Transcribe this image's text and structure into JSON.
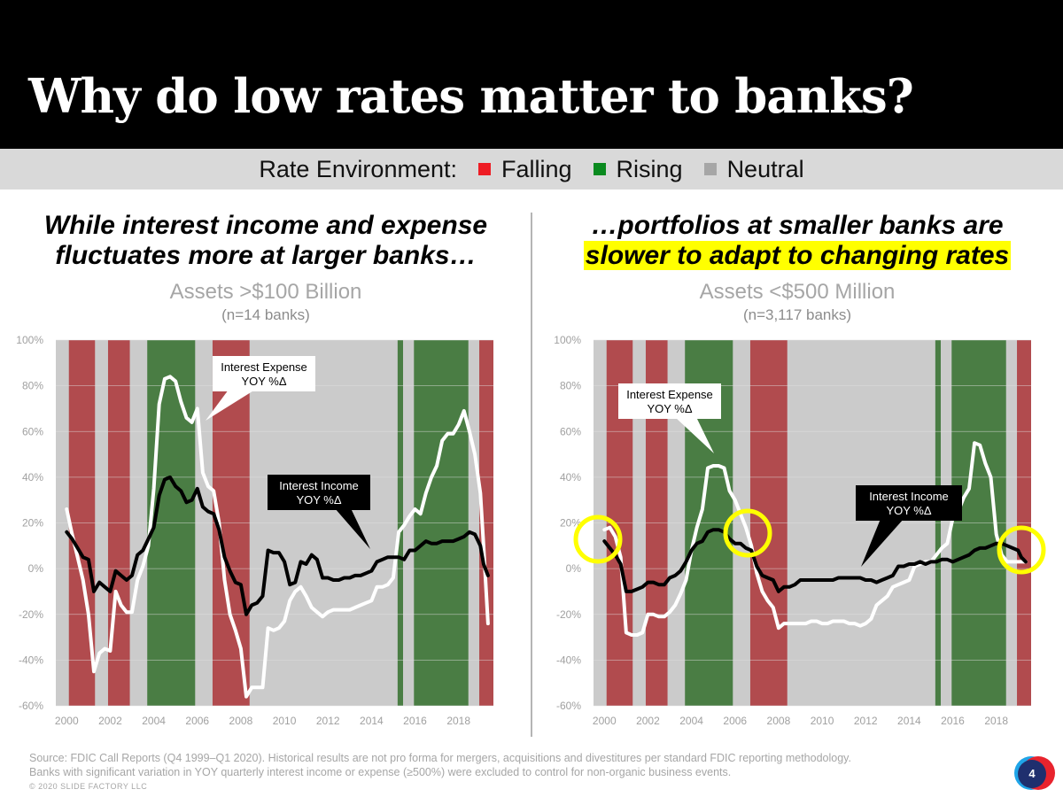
{
  "title": "Why do low rates matter to banks?",
  "legend": {
    "label": "Rate Environment:",
    "items": [
      {
        "label": "Falling",
        "color": "#ee1c24"
      },
      {
        "label": "Rising",
        "color": "#0a8a1f"
      },
      {
        "label": "Neutral",
        "color": "#a6a6a6"
      }
    ]
  },
  "left": {
    "headline_line1": "While interest income and expense",
    "headline_line2": "fluctuates more at larger banks…",
    "subtitle": "Assets >$100 Billion",
    "note": "(n=14 banks)"
  },
  "right": {
    "headline_line1": "…portfolios at smaller banks are",
    "headline_highlight": "slower to adapt to changing rates",
    "subtitle": "Assets <$500 Million",
    "note": "(n=3,117 banks)"
  },
  "chart_data": [
    {
      "type": "line",
      "title": "Assets >$100 Billion",
      "ylim": [
        -60,
        100
      ],
      "xlim": [
        1999.5,
        2019.6
      ],
      "y_ticks": [
        "100%",
        "80%",
        "60%",
        "40%",
        "20%",
        "0%",
        "-20%",
        "-40%",
        "-60%"
      ],
      "x_ticks": [
        "2000",
        "2002",
        "2004",
        "2006",
        "2008",
        "2010",
        "2012",
        "2014",
        "2016",
        "2018"
      ],
      "regimes": [
        {
          "type": "falling",
          "start": 2000.1,
          "end": 2001.3
        },
        {
          "type": "falling",
          "start": 2001.9,
          "end": 2002.9
        },
        {
          "type": "rising",
          "start": 2003.7,
          "end": 2005.9
        },
        {
          "type": "falling",
          "start": 2006.7,
          "end": 2008.4
        },
        {
          "type": "rising",
          "start": 2015.2,
          "end": 2015.45
        },
        {
          "type": "rising",
          "start": 2015.95,
          "end": 2018.45
        },
        {
          "type": "falling",
          "start": 2018.95,
          "end": 2019.6
        }
      ],
      "series": [
        {
          "name": "Interest Expense YOY %Δ",
          "color": "#ffffff",
          "x": [
            2000.0,
            2000.25,
            2000.5,
            2000.75,
            2001.0,
            2001.25,
            2001.5,
            2001.75,
            2002.0,
            2002.25,
            2002.5,
            2002.75,
            2003.0,
            2003.25,
            2003.5,
            2003.75,
            2004.0,
            2004.25,
            2004.5,
            2004.75,
            2005.0,
            2005.25,
            2005.5,
            2005.75,
            2006.0,
            2006.25,
            2006.5,
            2006.75,
            2007.0,
            2007.25,
            2007.5,
            2007.75,
            2008.0,
            2008.25,
            2008.5,
            2008.75,
            2009.0,
            2009.25,
            2009.5,
            2009.75,
            2010.0,
            2010.25,
            2010.5,
            2010.75,
            2011.0,
            2011.25,
            2011.5,
            2011.75,
            2012.0,
            2012.25,
            2012.5,
            2012.75,
            2013.0,
            2013.25,
            2013.5,
            2013.75,
            2014.0,
            2014.25,
            2014.5,
            2014.75,
            2015.0,
            2015.25,
            2015.5,
            2015.75,
            2016.0,
            2016.25,
            2016.5,
            2016.75,
            2017.0,
            2017.25,
            2017.5,
            2017.75,
            2018.0,
            2018.25,
            2018.5,
            2018.75,
            2019.0,
            2019.15,
            2019.35
          ],
          "values": [
            26,
            15,
            5,
            -5,
            -20,
            -45,
            -37,
            -35,
            -36,
            -10,
            -16,
            -19,
            -19,
            -5,
            1,
            10,
            35,
            72,
            83,
            84,
            82,
            73,
            66,
            64,
            70,
            42,
            36,
            34,
            20,
            -5,
            -20,
            -27,
            -35,
            -56,
            -52,
            -52,
            -52,
            -26,
            -27,
            -26,
            -23,
            -14,
            -10,
            -8,
            -12,
            -17,
            -19,
            -21,
            -19,
            -18,
            -18,
            -18,
            -18,
            -17,
            -16,
            -15,
            -14,
            -8,
            -8,
            -7,
            -4,
            16,
            19,
            23,
            26,
            24,
            33,
            40,
            45,
            56,
            59,
            59,
            63,
            69,
            60,
            50,
            33,
            10,
            -24
          ]
        },
        {
          "name": "Interest Income YOY %Δ",
          "color": "#000000",
          "x": [
            2000.0,
            2000.25,
            2000.5,
            2000.75,
            2001.0,
            2001.25,
            2001.5,
            2001.75,
            2002.0,
            2002.25,
            2002.5,
            2002.75,
            2003.0,
            2003.25,
            2003.5,
            2003.75,
            2004.0,
            2004.25,
            2004.5,
            2004.75,
            2005.0,
            2005.25,
            2005.5,
            2005.75,
            2006.0,
            2006.25,
            2006.5,
            2006.75,
            2007.0,
            2007.25,
            2007.5,
            2007.75,
            2008.0,
            2008.25,
            2008.5,
            2008.75,
            2009.0,
            2009.25,
            2009.5,
            2009.75,
            2010.0,
            2010.25,
            2010.5,
            2010.75,
            2011.0,
            2011.25,
            2011.5,
            2011.75,
            2012.0,
            2012.25,
            2012.5,
            2012.75,
            2013.0,
            2013.25,
            2013.5,
            2013.75,
            2014.0,
            2014.25,
            2014.5,
            2014.75,
            2015.0,
            2015.25,
            2015.5,
            2015.75,
            2016.0,
            2016.25,
            2016.5,
            2016.75,
            2017.0,
            2017.25,
            2017.5,
            2017.75,
            2018.0,
            2018.25,
            2018.5,
            2018.75,
            2019.0,
            2019.15,
            2019.35
          ],
          "values": [
            16,
            13,
            9,
            5,
            4,
            -10,
            -6,
            -8,
            -10,
            -1,
            -3,
            -5,
            -3,
            6,
            8,
            13,
            18,
            32,
            39,
            40,
            36,
            34,
            29,
            30,
            35,
            27,
            25,
            24,
            17,
            5,
            -1,
            -6,
            -7,
            -20,
            -16,
            -15,
            -12,
            8,
            7,
            7,
            3,
            -7,
            -6,
            3,
            2,
            6,
            4,
            -4,
            -4,
            -5,
            -5,
            -4,
            -4,
            -3,
            -3,
            -2,
            -1,
            3,
            4,
            5,
            5,
            5,
            4,
            8,
            8,
            10,
            12,
            11,
            11,
            12,
            12,
            12,
            13,
            14,
            16,
            15,
            10,
            2,
            -3
          ]
        }
      ],
      "annotations": [
        {
          "line1": "Interest Expense",
          "line2": "YOY %Δ"
        },
        {
          "line1": "Interest Income",
          "line2": "YOY %Δ"
        }
      ]
    },
    {
      "type": "line",
      "title": "Assets <$500 Million",
      "ylim": [
        -60,
        100
      ],
      "xlim": [
        1999.5,
        2019.6
      ],
      "y_ticks": [
        "100%",
        "80%",
        "60%",
        "40%",
        "20%",
        "0%",
        "-20%",
        "-40%",
        "-60%"
      ],
      "x_ticks": [
        "2000",
        "2002",
        "2004",
        "2006",
        "2008",
        "2010",
        "2012",
        "2014",
        "2016",
        "2018"
      ],
      "regimes": [
        {
          "type": "falling",
          "start": 2000.1,
          "end": 2001.3
        },
        {
          "type": "falling",
          "start": 2001.9,
          "end": 2002.9
        },
        {
          "type": "rising",
          "start": 2003.7,
          "end": 2005.9
        },
        {
          "type": "falling",
          "start": 2006.7,
          "end": 2008.4
        },
        {
          "type": "rising",
          "start": 2015.2,
          "end": 2015.45
        },
        {
          "type": "rising",
          "start": 2015.95,
          "end": 2018.45
        },
        {
          "type": "falling",
          "start": 2018.95,
          "end": 2019.6
        }
      ],
      "series": [
        {
          "name": "Interest Expense YOY %Δ",
          "color": "#ffffff",
          "x": [
            2000.0,
            2000.25,
            2000.5,
            2000.75,
            2001.0,
            2001.25,
            2001.5,
            2001.75,
            2002.0,
            2002.25,
            2002.5,
            2002.75,
            2003.0,
            2003.25,
            2003.5,
            2003.75,
            2004.0,
            2004.25,
            2004.5,
            2004.75,
            2005.0,
            2005.25,
            2005.5,
            2005.75,
            2006.0,
            2006.25,
            2006.5,
            2006.75,
            2007.0,
            2007.25,
            2007.5,
            2007.75,
            2008.0,
            2008.25,
            2008.5,
            2008.75,
            2009.0,
            2009.25,
            2009.5,
            2009.75,
            2010.0,
            2010.25,
            2010.5,
            2010.75,
            2011.0,
            2011.25,
            2011.5,
            2011.75,
            2012.0,
            2012.25,
            2012.5,
            2012.75,
            2013.0,
            2013.25,
            2013.5,
            2013.75,
            2014.0,
            2014.25,
            2014.5,
            2014.75,
            2015.0,
            2015.25,
            2015.5,
            2015.75,
            2016.0,
            2016.25,
            2016.5,
            2016.75,
            2017.0,
            2017.25,
            2017.5,
            2017.75,
            2018.0,
            2018.25,
            2018.5,
            2018.75,
            2019.0,
            2019.15,
            2019.35
          ],
          "values": [
            17,
            18,
            14,
            5,
            -28,
            -29,
            -29,
            -28,
            -20,
            -20,
            -21,
            -21,
            -19,
            -16,
            -11,
            -5,
            8,
            18,
            26,
            44,
            45,
            45,
            44,
            34,
            30,
            24,
            18,
            10,
            -2,
            -10,
            -14,
            -17,
            -26,
            -24,
            -24,
            -24,
            -24,
            -24,
            -23,
            -23,
            -24,
            -24,
            -23,
            -23,
            -23,
            -24,
            -24,
            -25,
            -24,
            -22,
            -16,
            -14,
            -12,
            -8,
            -7,
            -6,
            -5,
            1,
            2,
            3,
            3,
            6,
            9,
            11,
            22,
            25,
            31,
            35,
            55,
            54,
            46,
            40,
            15,
            6,
            3,
            3,
            3,
            3,
            3
          ]
        },
        {
          "name": "Interest Income YOY %Δ",
          "color": "#000000",
          "x": [
            2000.0,
            2000.25,
            2000.5,
            2000.75,
            2001.0,
            2001.25,
            2001.5,
            2001.75,
            2002.0,
            2002.25,
            2002.5,
            2002.75,
            2003.0,
            2003.25,
            2003.5,
            2003.75,
            2004.0,
            2004.25,
            2004.5,
            2004.75,
            2005.0,
            2005.25,
            2005.5,
            2005.75,
            2006.0,
            2006.25,
            2006.5,
            2006.75,
            2007.0,
            2007.25,
            2007.5,
            2007.75,
            2008.0,
            2008.25,
            2008.5,
            2008.75,
            2009.0,
            2009.25,
            2009.5,
            2009.75,
            2010.0,
            2010.25,
            2010.5,
            2010.75,
            2011.0,
            2011.25,
            2011.5,
            2011.75,
            2012.0,
            2012.25,
            2012.5,
            2012.75,
            2013.0,
            2013.25,
            2013.5,
            2013.75,
            2014.0,
            2014.25,
            2014.5,
            2014.75,
            2015.0,
            2015.25,
            2015.5,
            2015.75,
            2016.0,
            2016.25,
            2016.5,
            2016.75,
            2017.0,
            2017.25,
            2017.5,
            2017.75,
            2018.0,
            2018.25,
            2018.5,
            2018.75,
            2019.0,
            2019.15,
            2019.35
          ],
          "values": [
            12,
            9,
            6,
            2,
            -10,
            -10,
            -9,
            -8,
            -6,
            -6,
            -7,
            -7,
            -4,
            -3,
            -1,
            3,
            8,
            11,
            12,
            16,
            17,
            17,
            16,
            13,
            11,
            11,
            9,
            8,
            1,
            -3,
            -4,
            -5,
            -10,
            -8,
            -8,
            -7,
            -5,
            -5,
            -5,
            -5,
            -5,
            -5,
            -5,
            -4,
            -4,
            -4,
            -4,
            -4,
            -5,
            -5,
            -6,
            -5,
            -4,
            -3,
            1,
            1,
            2,
            2,
            3,
            2,
            3,
            3,
            4,
            4,
            3,
            4,
            5,
            6,
            8,
            9,
            9,
            10,
            11,
            11,
            10,
            9,
            8,
            5,
            3
          ]
        }
      ],
      "annotations": [
        {
          "line1": "Interest Expense",
          "line2": "YOY %Δ"
        },
        {
          "line1": "Interest Income",
          "line2": "YOY %Δ"
        }
      ]
    }
  ],
  "colors": {
    "falling_band": "#b14b4e",
    "rising_band": "#4a7d44",
    "neutral_band": "#cbcbcb",
    "highlight_circle": "#ffff00"
  },
  "source_line1": "Source: FDIC Call Reports (Q4 1999–Q1 2020).  Historical results are not pro forma for mergers, acquisitions and divestitures per standard FDIC reporting methodology.",
  "source_line2": "Banks with significant variation in YOY quarterly interest income or expense (≥500%) were excluded to control for non-organic business events.",
  "copyright": "© 2020 SLIDE FACTORY LLC",
  "page_number": "4"
}
